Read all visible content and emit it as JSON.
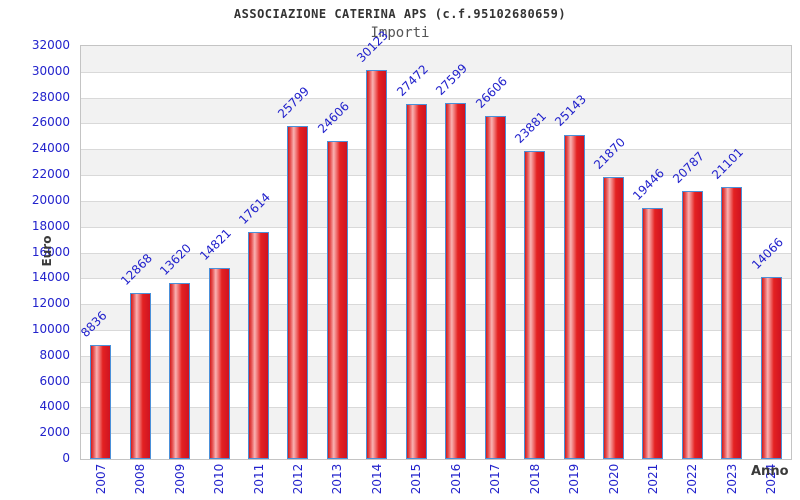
{
  "chart_data": {
    "type": "bar",
    "title": "ASSOCIAZIONE CATERINA APS (c.f.95102680659)",
    "subtitle": "Importi",
    "xlabel": "Anno",
    "ylabel": "Euro",
    "categories": [
      "2007",
      "2008",
      "2009",
      "2010",
      "2011",
      "2012",
      "2013",
      "2014",
      "2015",
      "2016",
      "2017",
      "2018",
      "2019",
      "2020",
      "2021",
      "2022",
      "2023",
      "2024"
    ],
    "values": [
      8836,
      12868,
      13620,
      14821,
      17614,
      25799,
      24606,
      30123,
      27472,
      27599,
      26606,
      23881,
      25143,
      21870,
      19446,
      20787,
      21101,
      14066
    ],
    "ylim": [
      0,
      32000
    ],
    "ytick_step": 2000,
    "grid": "horizontal-bands",
    "legend": "none",
    "colors": {
      "tick_label": "#2222cc",
      "value_label": "#2222cc",
      "bar_border": "#4a90d9",
      "bar_fill_dark": "#cf1322",
      "bar_fill_highlight": "#f9b2b2",
      "band_gray": "#f2f2f2",
      "band_white": "#ffffff",
      "plot_border": "#c4c4c4",
      "title_color": "#333333",
      "subtitle_color": "#555555",
      "axis_title_color": "#3a3a3a"
    }
  }
}
